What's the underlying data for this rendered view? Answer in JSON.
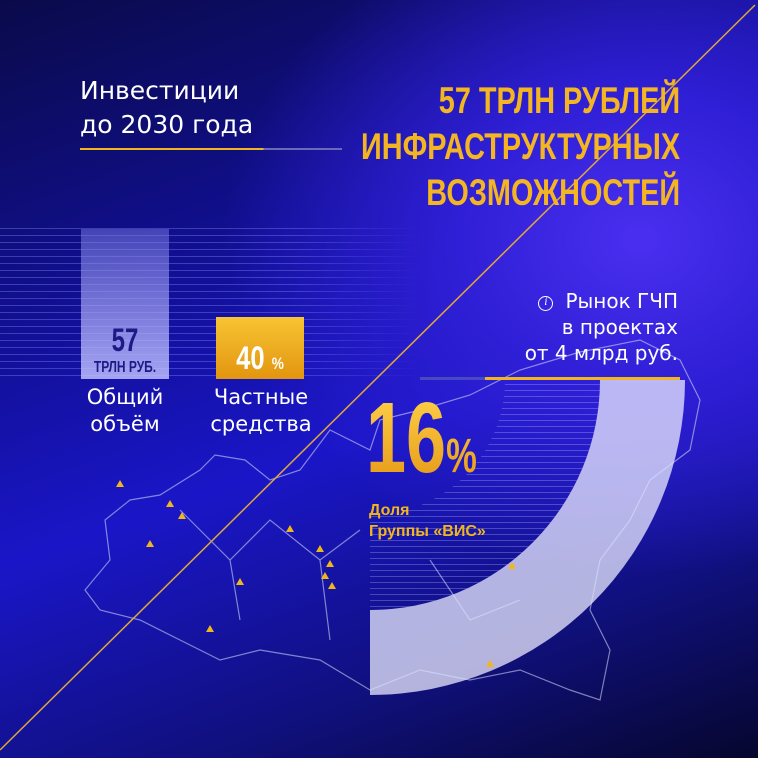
{
  "header": {
    "subtitle_lines": [
      "Инвестиции",
      "до 2030 года"
    ],
    "title_lines": [
      "57 ТРЛН РУБЛЕЙ",
      "ИНФРАСТРУКТУРНЫХ",
      "ВОЗМОЖНОСТЕЙ"
    ]
  },
  "bars": [
    {
      "value": "57",
      "unit": "ТРЛН РУБ.",
      "label_lines": [
        "Общий",
        "объём"
      ]
    },
    {
      "value": "40",
      "unit": "%",
      "label_lines": [
        "Частные",
        "средства"
      ],
      "share_percent": 40
    }
  ],
  "ppp": {
    "icon": "info-icon",
    "lines": [
      "Рынок ГЧП",
      "в проектах",
      "от 4 млрд руб."
    ],
    "value": "16",
    "unit": "%",
    "share_percent": 16,
    "caption_lines": [
      "Доля",
      "Группы «ВИС»"
    ]
  },
  "colors": {
    "accent": "#f2b61d",
    "background": "#1a16c8",
    "text": "#ffffff"
  }
}
